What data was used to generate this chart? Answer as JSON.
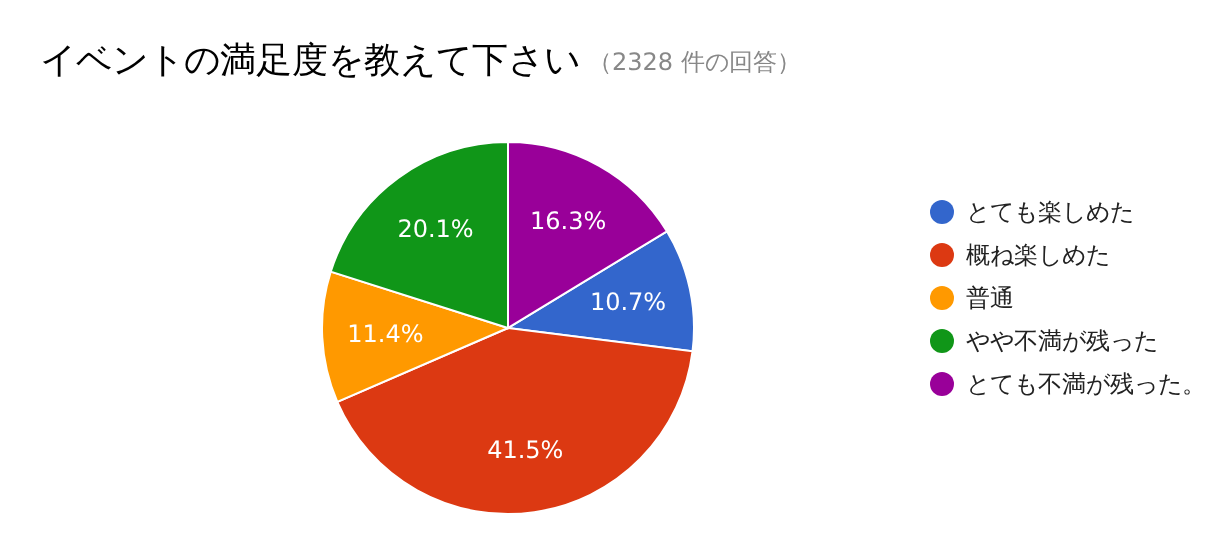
{
  "chart_data": {
    "type": "pie",
    "title": "イベントの満足度を教えて下さい",
    "subtitle": "（2328 件の回答）",
    "categories": [
      "とても楽しめた",
      "概ね楽しめた",
      "普通",
      "やや不満が残った",
      "とても不満が残った。"
    ],
    "values": [
      10.7,
      41.5,
      11.4,
      20.1,
      16.3
    ],
    "colors": [
      "#3366cc",
      "#dc3912",
      "#ff9900",
      "#109618",
      "#990099"
    ],
    "value_labels": [
      "10.7%",
      "41.5%",
      "11.4%",
      "20.1%",
      "16.3%"
    ],
    "legend": "right"
  }
}
